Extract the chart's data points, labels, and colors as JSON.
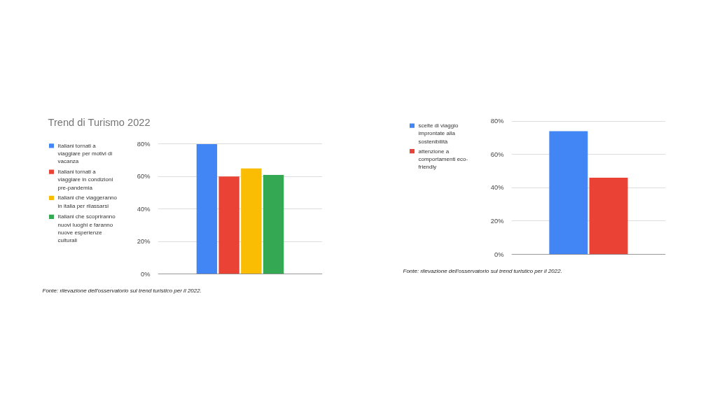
{
  "chart_data": [
    {
      "type": "bar",
      "title": "Trend di Turismo 2022",
      "categories": [
        null
      ],
      "series": [
        {
          "name": "Italiani tornati a viaggiare per motivi di vacanza",
          "color": "#4285f4",
          "values": [
            80
          ]
        },
        {
          "name": "Italiani tornati a viaggiare in condizioni pre-pandemia",
          "color": "#ea4335",
          "values": [
            60
          ]
        },
        {
          "name": "Italiani che viaggeranno in italia per rilassarsi",
          "color": "#fbbc04",
          "values": [
            65
          ]
        },
        {
          "name": "Italiani che scopriranno nuovi luoghi e faranno nuove esperienze culturali",
          "color": "#34a853",
          "values": [
            61
          ]
        }
      ],
      "ylim": [
        0,
        80
      ],
      "yticks": [
        {
          "value": 0,
          "label": "0%"
        },
        {
          "value": 20,
          "label": "20%"
        },
        {
          "value": 40,
          "label": "40%"
        },
        {
          "value": 60,
          "label": "60%"
        },
        {
          "value": 80,
          "label": "80%"
        }
      ],
      "grid": "y",
      "legend": "left",
      "tick_labels": "y",
      "annotations": [
        "Fonte: rilevazione dell'osservatorio sul trend turistico per il 2022."
      ]
    },
    {
      "type": "bar",
      "categories": [
        null
      ],
      "series": [
        {
          "name": "scelte di viaggio improntate alla sostenibilità",
          "color": "#4285f4",
          "values": [
            74
          ]
        },
        {
          "name": "attenzione a comportamenti eco-friendly",
          "color": "#ea4335",
          "values": [
            46
          ]
        }
      ],
      "ylim": [
        0,
        80
      ],
      "yticks": [
        {
          "value": 0,
          "label": "0%"
        },
        {
          "value": 20,
          "label": "20%"
        },
        {
          "value": 40,
          "label": "40%"
        },
        {
          "value": 60,
          "label": "60%"
        },
        {
          "value": 80,
          "label": "80%"
        }
      ],
      "grid": "y",
      "legend": "left",
      "tick_labels": "y",
      "annotations": [
        "Fonte: rilevazione dell'osservatorio sul trend turistico per il 2022."
      ]
    }
  ]
}
